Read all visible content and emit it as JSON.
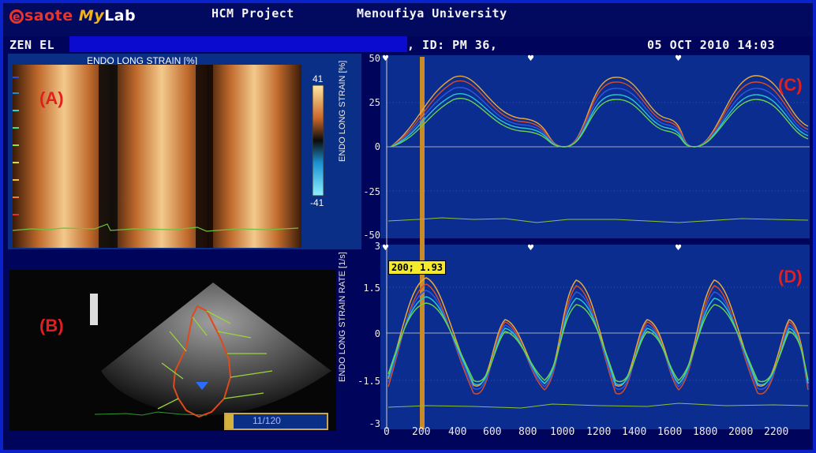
{
  "header": {
    "brand_logo": "esaote MyLab",
    "project": "HCM Project",
    "institution": "Menoufiya University",
    "patient_name": "ZEN EL",
    "patient_id": ", ID: PM 36,",
    "datetime": "05 OCT 2010 14:03"
  },
  "panel_labels": {
    "a": "(A)",
    "b": "(B)",
    "c": "(C)",
    "d": "(D)"
  },
  "panel_a": {
    "title": "ENDO LONG STRAIN [%]",
    "scale_max": "41",
    "scale_min": "-41"
  },
  "panel_b": {
    "frame_counter": "11/120"
  },
  "panel_c": {
    "ylabel": "ENDO LONG STRAIN [%]",
    "yticks": [
      "50",
      "25",
      "0",
      "-25",
      "-50"
    ]
  },
  "panel_d": {
    "ylabel": "ENDO LONG STRAIN RATE [1/s]",
    "yticks": [
      "3",
      "1.5",
      "0",
      "-1.5",
      "-3"
    ],
    "cursor_readout": "200; 1.93"
  },
  "x_axis": {
    "ticks": [
      "0",
      "200",
      "400",
      "600",
      "800",
      "1000",
      "1200",
      "1400",
      "1600",
      "1800",
      "2000",
      "2200"
    ]
  },
  "colors": {
    "frame_border": "#0a23c8",
    "panel_bg": "#0b2d8f",
    "label_red": "#e21f1f",
    "cursor": "#c98a2a",
    "ecg": "#8fbf3a"
  }
}
